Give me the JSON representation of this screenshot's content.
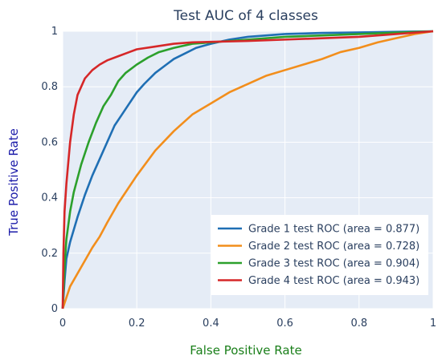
{
  "chart_data": {
    "type": "line",
    "title": "Test AUC of 4 classes",
    "xlabel": "False Positive Rate",
    "ylabel": "True Positive Rate",
    "xlim": [
      0,
      1
    ],
    "ylim": [
      0,
      1
    ],
    "x_ticks": [
      "0",
      "0.2",
      "0.4",
      "0.6",
      "0.8",
      "1"
    ],
    "y_ticks": [
      "0",
      "0.2",
      "0.4",
      "0.6",
      "0.8",
      "1"
    ],
    "grid": true,
    "legend_position": "bottom-right",
    "colors": {
      "plot_background": "#e5ecf6",
      "grid": "#ffffff",
      "title": "#2a3f5f",
      "xlabel": "#1a7f1a",
      "ylabel": "#1a1aa8"
    },
    "series": [
      {
        "name": "Grade 1 test ROC (area = 0.877)",
        "color": "#1f6fb4",
        "points": [
          [
            0,
            0
          ],
          [
            0.005,
            0.1
          ],
          [
            0.01,
            0.18
          ],
          [
            0.02,
            0.24
          ],
          [
            0.04,
            0.33
          ],
          [
            0.06,
            0.41
          ],
          [
            0.08,
            0.48
          ],
          [
            0.1,
            0.54
          ],
          [
            0.12,
            0.6
          ],
          [
            0.14,
            0.66
          ],
          [
            0.16,
            0.7
          ],
          [
            0.18,
            0.74
          ],
          [
            0.2,
            0.78
          ],
          [
            0.22,
            0.81
          ],
          [
            0.25,
            0.85
          ],
          [
            0.28,
            0.88
          ],
          [
            0.3,
            0.9
          ],
          [
            0.33,
            0.92
          ],
          [
            0.36,
            0.94
          ],
          [
            0.4,
            0.955
          ],
          [
            0.45,
            0.97
          ],
          [
            0.5,
            0.98
          ],
          [
            0.55,
            0.985
          ],
          [
            0.6,
            0.99
          ],
          [
            0.7,
            0.994
          ],
          [
            0.8,
            0.996
          ],
          [
            0.9,
            0.998
          ],
          [
            1,
            1
          ]
        ]
      },
      {
        "name": "Grade 2 test ROC (area = 0.728)",
        "color": "#f28e1c",
        "points": [
          [
            0,
            0
          ],
          [
            0.01,
            0.04
          ],
          [
            0.02,
            0.08
          ],
          [
            0.05,
            0.15
          ],
          [
            0.08,
            0.22
          ],
          [
            0.1,
            0.26
          ],
          [
            0.12,
            0.31
          ],
          [
            0.15,
            0.38
          ],
          [
            0.18,
            0.44
          ],
          [
            0.2,
            0.48
          ],
          [
            0.25,
            0.57
          ],
          [
            0.3,
            0.64
          ],
          [
            0.35,
            0.7
          ],
          [
            0.4,
            0.74
          ],
          [
            0.45,
            0.78
          ],
          [
            0.5,
            0.81
          ],
          [
            0.55,
            0.84
          ],
          [
            0.6,
            0.86
          ],
          [
            0.65,
            0.88
          ],
          [
            0.7,
            0.9
          ],
          [
            0.75,
            0.925
          ],
          [
            0.8,
            0.94
          ],
          [
            0.85,
            0.96
          ],
          [
            0.9,
            0.975
          ],
          [
            0.95,
            0.99
          ],
          [
            1,
            1
          ]
        ]
      },
      {
        "name": "Grade 3 test ROC (area = 0.904)",
        "color": "#2ca02c",
        "points": [
          [
            0,
            0
          ],
          [
            0.005,
            0.15
          ],
          [
            0.01,
            0.25
          ],
          [
            0.02,
            0.35
          ],
          [
            0.03,
            0.42
          ],
          [
            0.05,
            0.52
          ],
          [
            0.07,
            0.6
          ],
          [
            0.09,
            0.67
          ],
          [
            0.11,
            0.73
          ],
          [
            0.13,
            0.77
          ],
          [
            0.15,
            0.82
          ],
          [
            0.17,
            0.85
          ],
          [
            0.2,
            0.88
          ],
          [
            0.23,
            0.905
          ],
          [
            0.26,
            0.925
          ],
          [
            0.3,
            0.94
          ],
          [
            0.35,
            0.955
          ],
          [
            0.4,
            0.96
          ],
          [
            0.45,
            0.965
          ],
          [
            0.5,
            0.97
          ],
          [
            0.6,
            0.98
          ],
          [
            0.7,
            0.985
          ],
          [
            0.8,
            0.99
          ],
          [
            0.9,
            0.995
          ],
          [
            1,
            1
          ]
        ]
      },
      {
        "name": "Grade 4 test ROC (area = 0.943)",
        "color": "#d62728",
        "points": [
          [
            0,
            0
          ],
          [
            0.002,
            0.2
          ],
          [
            0.005,
            0.35
          ],
          [
            0.01,
            0.45
          ],
          [
            0.02,
            0.6
          ],
          [
            0.03,
            0.7
          ],
          [
            0.04,
            0.77
          ],
          [
            0.05,
            0.8
          ],
          [
            0.06,
            0.83
          ],
          [
            0.08,
            0.86
          ],
          [
            0.1,
            0.88
          ],
          [
            0.12,
            0.895
          ],
          [
            0.15,
            0.91
          ],
          [
            0.18,
            0.925
          ],
          [
            0.2,
            0.935
          ],
          [
            0.25,
            0.945
          ],
          [
            0.3,
            0.955
          ],
          [
            0.35,
            0.96
          ],
          [
            0.4,
            0.962
          ],
          [
            0.5,
            0.965
          ],
          [
            0.6,
            0.97
          ],
          [
            0.7,
            0.975
          ],
          [
            0.8,
            0.98
          ],
          [
            0.9,
            0.99
          ],
          [
            1,
            1
          ]
        ]
      }
    ]
  }
}
